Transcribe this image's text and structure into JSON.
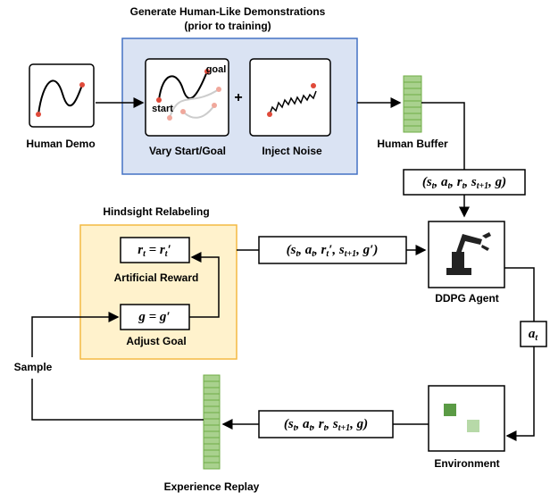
{
  "header": {
    "title": "Generate Human-Like Demonstrations",
    "subtitle": "(prior to training)"
  },
  "demo": {
    "human_demo": "Human Demo",
    "vary": "Vary Start/Goal",
    "start": "start",
    "goal": "goal",
    "plus": "+",
    "noise": "Inject Noise",
    "buffer": "Human Buffer"
  },
  "hindsight": {
    "title": "Hindsight Relabeling",
    "reward": "Artificial Reward",
    "adjust": "Adjust Goal"
  },
  "loop": {
    "agent": "DDPG Agent",
    "environment": "Environment",
    "replay": "Experience Replay",
    "sample": "Sample"
  },
  "math": {
    "tuple_human": [
      {
        "t": "("
      },
      {
        "t": "s"
      },
      {
        "t": "t",
        "sub": true
      },
      {
        "t": ", "
      },
      {
        "t": "a"
      },
      {
        "t": "t",
        "sub": true
      },
      {
        "t": ", "
      },
      {
        "t": "r"
      },
      {
        "t": "t",
        "sub": true
      },
      {
        "t": ", "
      },
      {
        "t": "s"
      },
      {
        "t": "t+1",
        "sub": true
      },
      {
        "t": ", "
      },
      {
        "t": "g"
      },
      {
        "t": ")"
      }
    ],
    "tuple_relabel": [
      {
        "t": "("
      },
      {
        "t": "s"
      },
      {
        "t": "t",
        "sub": true
      },
      {
        "t": ", "
      },
      {
        "t": "a"
      },
      {
        "t": "t",
        "sub": true
      },
      {
        "t": ", "
      },
      {
        "t": "r"
      },
      {
        "t": "t",
        "sub": true
      },
      {
        "t": "′, "
      },
      {
        "t": "s"
      },
      {
        "t": "t+1",
        "sub": true
      },
      {
        "t": ", "
      },
      {
        "t": "g′"
      },
      {
        "t": ")"
      }
    ],
    "tuple_env": [
      {
        "t": "("
      },
      {
        "t": "s"
      },
      {
        "t": "t",
        "sub": true
      },
      {
        "t": ", "
      },
      {
        "t": "a"
      },
      {
        "t": "t",
        "sub": true
      },
      {
        "t": ", "
      },
      {
        "t": "r"
      },
      {
        "t": "t",
        "sub": true
      },
      {
        "t": ", "
      },
      {
        "t": "s"
      },
      {
        "t": "t+1",
        "sub": true
      },
      {
        "t": ", "
      },
      {
        "t": "g"
      },
      {
        "t": ")"
      }
    ],
    "reward_eq": [
      {
        "t": "r"
      },
      {
        "t": "t",
        "sub": true
      },
      {
        "t": " = r"
      },
      {
        "t": "t",
        "sub": true
      },
      {
        "t": "′"
      }
    ],
    "goal_eq": [
      {
        "t": "g = g′"
      }
    ],
    "action": [
      {
        "t": "a"
      },
      {
        "t": "t",
        "sub": true
      }
    ]
  }
}
